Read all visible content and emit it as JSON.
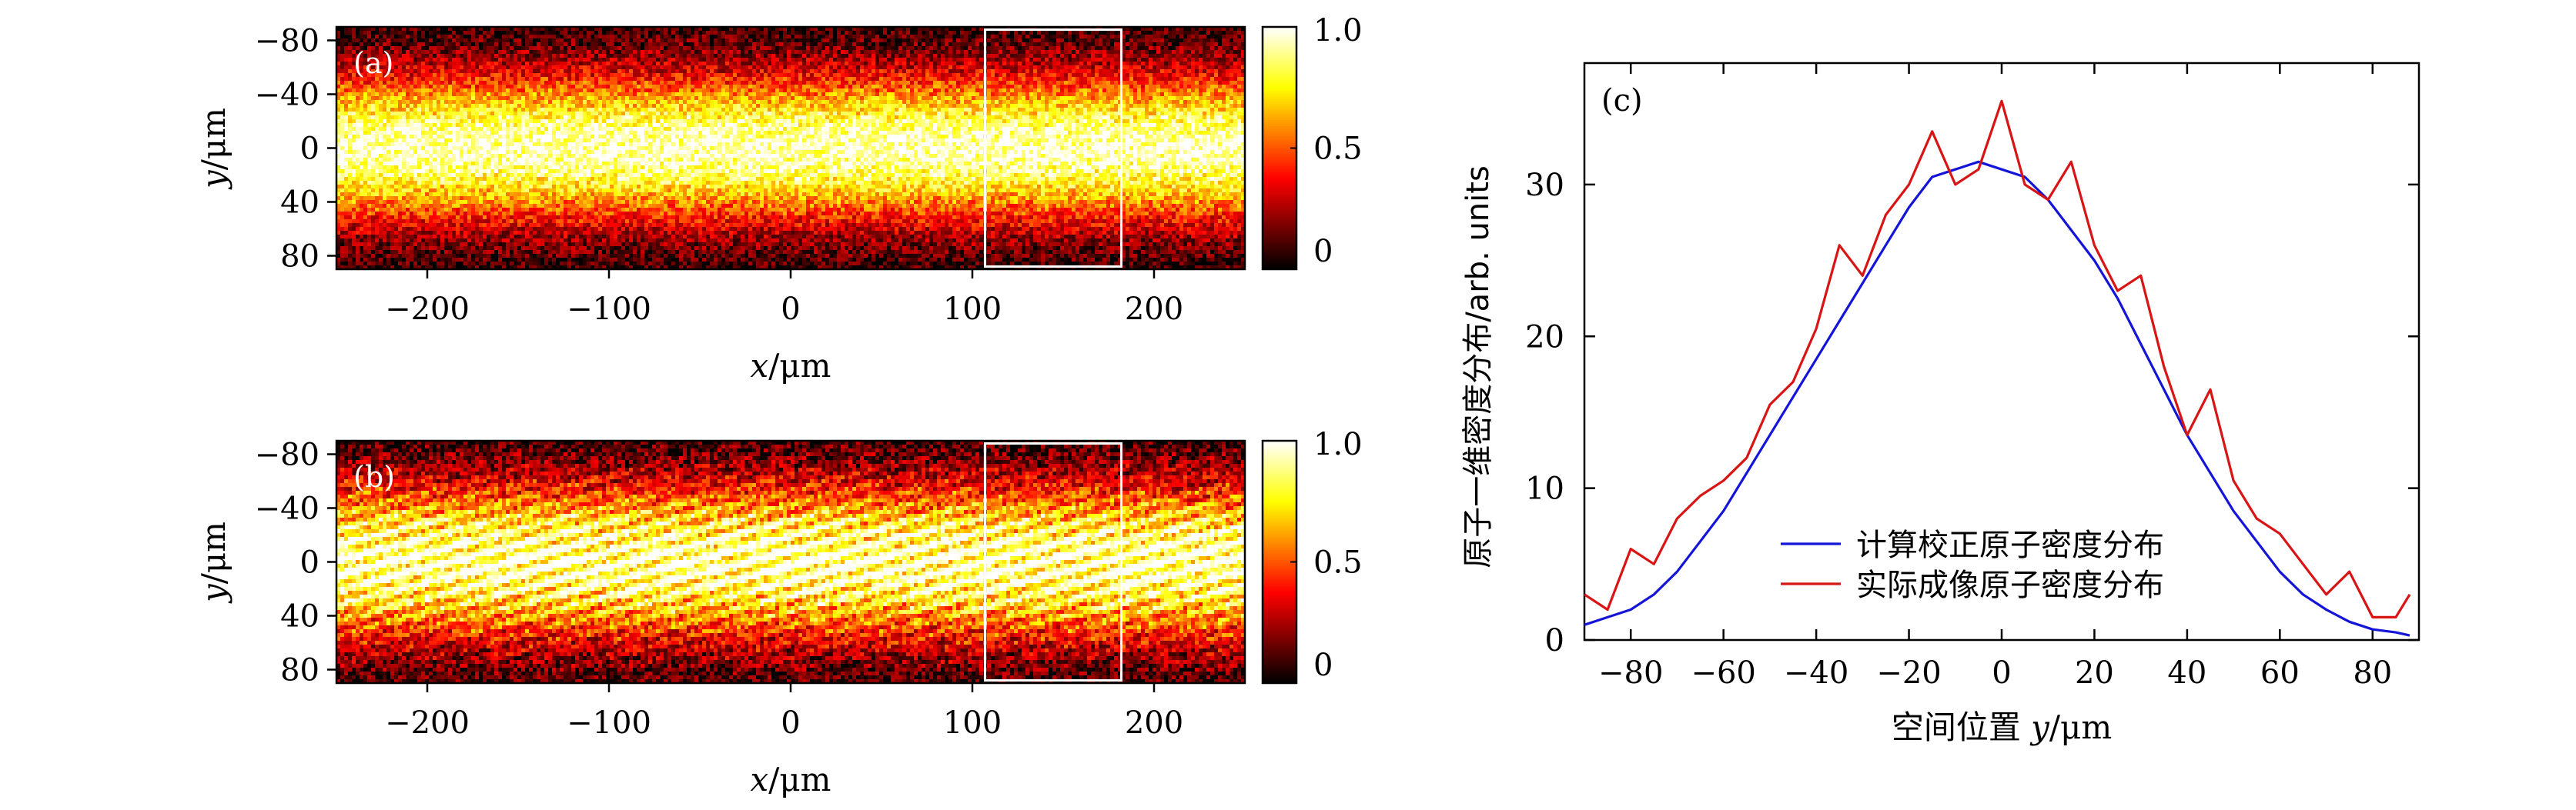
{
  "chart_data": [
    {
      "type": "heatmap",
      "panel_label": "(a)",
      "xlabel_var": "x",
      "ylabel_var": "y",
      "unit": "/μm",
      "xlim": [
        -250,
        250
      ],
      "ylim": [
        -90,
        90
      ],
      "xticks": [
        -200,
        -100,
        0,
        100,
        200
      ],
      "xtick_labels": [
        "−200",
        "−100",
        "0",
        "100",
        "200"
      ],
      "yticks": [
        -80,
        -40,
        0,
        40,
        80
      ],
      "ytick_labels": [
        "−80",
        "−40",
        "0",
        "40",
        "80"
      ],
      "colorbar": {
        "range": [
          0,
          1
        ],
        "ticks": [
          1.0,
          0.5,
          0
        ],
        "tick_labels": [
          "1.0",
          "0.5",
          "0"
        ]
      },
      "highlight_box": {
        "x": [
          107,
          182
        ],
        "y": [
          -88,
          88
        ]
      },
      "profile": {
        "center_y": 0,
        "sigma_y": 40,
        "noise": 0.16,
        "fringe_strength": 0.05
      },
      "colormap": "hot"
    },
    {
      "type": "heatmap",
      "panel_label": "(b)",
      "xlabel_var": "x",
      "ylabel_var": "y",
      "unit": "/μm",
      "xlim": [
        -250,
        250
      ],
      "ylim": [
        -90,
        90
      ],
      "xticks": [
        -200,
        -100,
        0,
        100,
        200
      ],
      "xtick_labels": [
        "−200",
        "−100",
        "0",
        "100",
        "200"
      ],
      "yticks": [
        -80,
        -40,
        0,
        40,
        80
      ],
      "ytick_labels": [
        "−80",
        "−40",
        "0",
        "40",
        "80"
      ],
      "colorbar": {
        "range": [
          0,
          1
        ],
        "ticks": [
          1.0,
          0.5,
          0
        ],
        "tick_labels": [
          "1.0",
          "0.5",
          "0"
        ]
      },
      "highlight_box": {
        "x": [
          107,
          182
        ],
        "y": [
          -88,
          88
        ]
      },
      "profile": {
        "center_y": 0,
        "sigma_y": 42,
        "noise": 0.18,
        "fringe_strength": 0.22
      },
      "colormap": "hot"
    },
    {
      "type": "line",
      "panel_label": "(c)",
      "xlabel_text": "空间位置",
      "xlabel_var": "y",
      "xlabel_unit": "/μm",
      "ylabel": "原子一维密度分布/arb. units",
      "xlim": [
        -90,
        90
      ],
      "ylim": [
        0,
        38
      ],
      "xticks": [
        -80,
        -60,
        -40,
        -20,
        0,
        20,
        40,
        60,
        80
      ],
      "xtick_labels": [
        "−80",
        "−60",
        "−40",
        "−20",
        "0",
        "20",
        "40",
        "60",
        "80"
      ],
      "yticks": [
        0,
        10,
        20,
        30
      ],
      "ytick_labels": [
        "0",
        "10",
        "20",
        "30"
      ],
      "legend_position": "lower-center",
      "x": [
        -90,
        -85,
        -80,
        -75,
        -70,
        -65,
        -60,
        -55,
        -50,
        -45,
        -40,
        -35,
        -30,
        -25,
        -20,
        -15,
        -10,
        -5,
        0,
        5,
        10,
        15,
        20,
        25,
        30,
        35,
        40,
        45,
        50,
        55,
        60,
        65,
        70,
        75,
        80,
        85,
        88
      ],
      "series": [
        {
          "name": "计算校正原子密度分布",
          "color": "#1515d8",
          "values": [
            1.0,
            1.5,
            2.0,
            3.0,
            4.5,
            6.5,
            8.5,
            11.0,
            13.5,
            16.0,
            18.5,
            21.0,
            23.5,
            26.0,
            28.5,
            30.5,
            31.0,
            31.5,
            31.0,
            30.5,
            29.0,
            27.0,
            25.0,
            22.5,
            19.5,
            16.5,
            13.5,
            11.0,
            8.5,
            6.5,
            4.5,
            3.0,
            2.0,
            1.2,
            0.7,
            0.5,
            0.3
          ]
        },
        {
          "name": "实际成像原子密度分布",
          "color": "#d81515",
          "values": [
            3.0,
            2.0,
            6.0,
            5.0,
            8.0,
            9.5,
            10.5,
            12.0,
            15.5,
            17.0,
            20.5,
            26.0,
            24.0,
            28.0,
            30.0,
            33.5,
            30.0,
            31.0,
            35.5,
            30.0,
            29.0,
            31.5,
            26.0,
            23.0,
            24.0,
            18.0,
            13.5,
            16.5,
            10.5,
            8.0,
            7.0,
            5.0,
            3.0,
            4.5,
            1.5,
            1.5,
            3.0
          ]
        }
      ]
    }
  ]
}
